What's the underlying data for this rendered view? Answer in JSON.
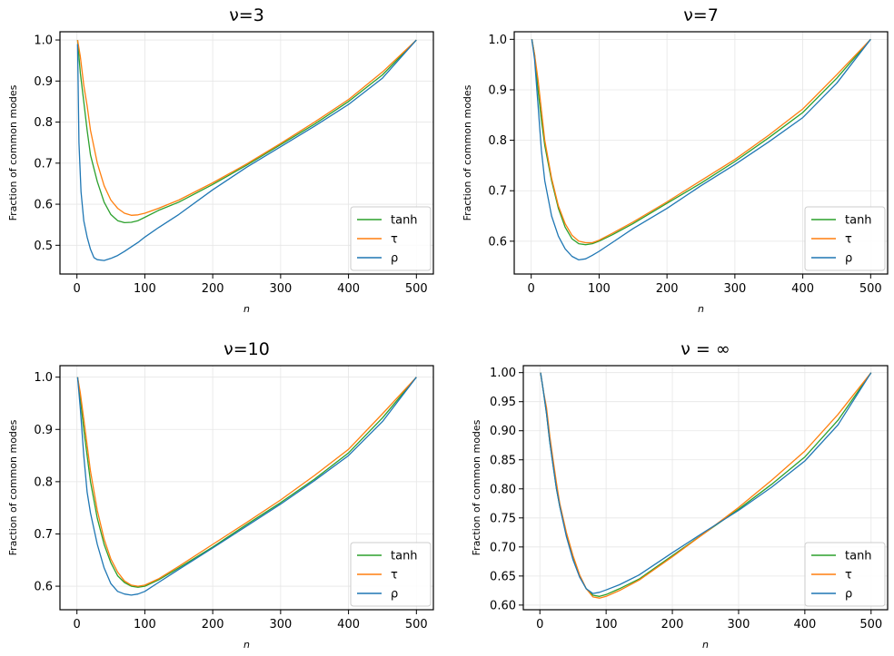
{
  "figure": {
    "colors": {
      "tanh": "#2ca02c",
      "tau": "#ff7f0e",
      "rho": "#1f77b4"
    }
  },
  "chart_data": [
    {
      "type": "line",
      "title": "ν=3",
      "xlabel": "n",
      "ylabel": "Fraction of common modes",
      "xlim": [
        -25,
        525
      ],
      "ylim": [
        0.43,
        1.02
      ],
      "xticks": [
        0,
        100,
        200,
        300,
        400,
        500
      ],
      "yticks": [
        0.5,
        0.6,
        0.7,
        0.8,
        0.9,
        1.0
      ],
      "ytick_labels": [
        "0.5",
        "0.6",
        "0.7",
        "0.8",
        "0.9",
        "1.0"
      ],
      "grid": true,
      "legend_position": "lower-right",
      "series": [
        {
          "name": "tanh",
          "color": "#2ca02c",
          "x": [
            1,
            5,
            10,
            15,
            20,
            30,
            40,
            50,
            60,
            70,
            80,
            90,
            100,
            120,
            150,
            200,
            250,
            300,
            350,
            400,
            450,
            500
          ],
          "y": [
            1.0,
            0.92,
            0.85,
            0.78,
            0.72,
            0.655,
            0.605,
            0.575,
            0.56,
            0.555,
            0.556,
            0.56,
            0.568,
            0.585,
            0.605,
            0.648,
            0.695,
            0.745,
            0.795,
            0.85,
            0.915,
            1.0
          ]
        },
        {
          "name": "τ",
          "color": "#ff7f0e",
          "x": [
            1,
            5,
            10,
            15,
            20,
            30,
            40,
            50,
            60,
            70,
            80,
            90,
            100,
            120,
            150,
            200,
            250,
            300,
            350,
            400,
            450,
            500
          ],
          "y": [
            1.0,
            0.96,
            0.89,
            0.84,
            0.78,
            0.7,
            0.645,
            0.61,
            0.59,
            0.578,
            0.573,
            0.574,
            0.578,
            0.59,
            0.61,
            0.652,
            0.698,
            0.748,
            0.8,
            0.855,
            0.922,
            1.0
          ]
        },
        {
          "name": "ρ",
          "color": "#1f77b4",
          "x": [
            1,
            3,
            6,
            10,
            15,
            20,
            25,
            30,
            40,
            50,
            60,
            70,
            80,
            90,
            100,
            120,
            150,
            200,
            250,
            300,
            350,
            400,
            450,
            500
          ],
          "y": [
            0.99,
            0.75,
            0.63,
            0.56,
            0.52,
            0.49,
            0.47,
            0.465,
            0.463,
            0.468,
            0.475,
            0.485,
            0.496,
            0.507,
            0.52,
            0.543,
            0.575,
            0.635,
            0.69,
            0.74,
            0.79,
            0.843,
            0.907,
            1.0
          ]
        }
      ]
    },
    {
      "type": "line",
      "title": "ν=7",
      "xlabel": "n",
      "ylabel": "Fraction of common modes",
      "xlim": [
        -25,
        525
      ],
      "ylim": [
        0.535,
        1.015
      ],
      "xticks": [
        0,
        100,
        200,
        300,
        400,
        500
      ],
      "yticks": [
        0.6,
        0.7,
        0.8,
        0.9,
        1.0
      ],
      "ytick_labels": [
        "0.6",
        "0.7",
        "0.8",
        "0.9",
        "1.0"
      ],
      "grid": true,
      "legend_position": "lower-right",
      "series": [
        {
          "name": "tanh",
          "color": "#2ca02c",
          "x": [
            1,
            5,
            10,
            15,
            20,
            30,
            40,
            50,
            60,
            70,
            80,
            90,
            100,
            120,
            150,
            200,
            250,
            300,
            350,
            400,
            450,
            500
          ],
          "y": [
            1.0,
            0.97,
            0.9,
            0.84,
            0.79,
            0.72,
            0.665,
            0.628,
            0.605,
            0.595,
            0.593,
            0.595,
            0.6,
            0.613,
            0.635,
            0.675,
            0.715,
            0.758,
            0.805,
            0.855,
            0.923,
            1.0
          ]
        },
        {
          "name": "τ",
          "color": "#ff7f0e",
          "x": [
            1,
            5,
            10,
            15,
            20,
            30,
            40,
            50,
            60,
            70,
            80,
            90,
            100,
            120,
            150,
            200,
            250,
            300,
            350,
            400,
            450,
            500
          ],
          "y": [
            1.0,
            0.97,
            0.92,
            0.86,
            0.8,
            0.725,
            0.67,
            0.635,
            0.612,
            0.6,
            0.597,
            0.597,
            0.602,
            0.616,
            0.638,
            0.678,
            0.72,
            0.762,
            0.81,
            0.862,
            0.93,
            1.0
          ]
        },
        {
          "name": "ρ",
          "color": "#1f77b4",
          "x": [
            1,
            5,
            10,
            15,
            20,
            30,
            40,
            50,
            60,
            70,
            80,
            90,
            100,
            120,
            150,
            200,
            250,
            300,
            350,
            400,
            450,
            500
          ],
          "y": [
            1.0,
            0.96,
            0.87,
            0.78,
            0.72,
            0.65,
            0.61,
            0.585,
            0.57,
            0.563,
            0.565,
            0.572,
            0.58,
            0.598,
            0.625,
            0.665,
            0.71,
            0.752,
            0.797,
            0.845,
            0.913,
            1.0
          ]
        }
      ]
    },
    {
      "type": "line",
      "title": "ν=10",
      "xlabel": "n",
      "ylabel": "Fraction of common modes",
      "xlim": [
        -25,
        525
      ],
      "ylim": [
        0.555,
        1.022
      ],
      "xticks": [
        0,
        100,
        200,
        300,
        400,
        500
      ],
      "yticks": [
        0.6,
        0.7,
        0.8,
        0.9,
        1.0
      ],
      "ytick_labels": [
        "0.6",
        "0.7",
        "0.8",
        "0.9",
        "1.0"
      ],
      "grid": true,
      "legend_position": "lower-right",
      "series": [
        {
          "name": "tanh",
          "color": "#2ca02c",
          "x": [
            1,
            5,
            10,
            15,
            20,
            30,
            40,
            50,
            60,
            70,
            80,
            90,
            100,
            120,
            150,
            200,
            250,
            300,
            350,
            400,
            450,
            500
          ],
          "y": [
            1.0,
            0.96,
            0.9,
            0.85,
            0.8,
            0.73,
            0.68,
            0.645,
            0.62,
            0.607,
            0.6,
            0.598,
            0.6,
            0.612,
            0.635,
            0.675,
            0.718,
            0.76,
            0.805,
            0.855,
            0.922,
            1.0
          ]
        },
        {
          "name": "τ",
          "color": "#ff7f0e",
          "x": [
            1,
            5,
            10,
            15,
            20,
            30,
            40,
            50,
            60,
            70,
            80,
            90,
            100,
            120,
            150,
            200,
            250,
            300,
            350,
            400,
            450,
            500
          ],
          "y": [
            1.0,
            0.97,
            0.92,
            0.87,
            0.82,
            0.745,
            0.69,
            0.652,
            0.627,
            0.61,
            0.602,
            0.6,
            0.602,
            0.614,
            0.638,
            0.68,
            0.722,
            0.765,
            0.812,
            0.862,
            0.93,
            1.0
          ]
        },
        {
          "name": "ρ",
          "color": "#1f77b4",
          "x": [
            1,
            5,
            10,
            15,
            20,
            30,
            40,
            50,
            60,
            70,
            80,
            90,
            100,
            120,
            150,
            200,
            250,
            300,
            350,
            400,
            450,
            500
          ],
          "y": [
            1.0,
            0.94,
            0.85,
            0.78,
            0.74,
            0.68,
            0.635,
            0.605,
            0.59,
            0.585,
            0.583,
            0.585,
            0.59,
            0.607,
            0.632,
            0.673,
            0.715,
            0.757,
            0.802,
            0.85,
            0.915,
            1.0
          ]
        }
      ]
    },
    {
      "type": "line",
      "title": "ν = ∞",
      "xlabel": "n",
      "ylabel": "Fraction of common modes",
      "xlim": [
        -25,
        525
      ],
      "ylim": [
        0.592,
        1.012
      ],
      "xticks": [
        0,
        100,
        200,
        300,
        400,
        500
      ],
      "yticks": [
        0.6,
        0.65,
        0.7,
        0.75,
        0.8,
        0.85,
        0.9,
        0.95,
        1.0
      ],
      "ytick_labels": [
        "0.60",
        "0.65",
        "0.70",
        "0.75",
        "0.80",
        "0.85",
        "0.90",
        "0.95",
        "1.00"
      ],
      "grid": true,
      "legend_position": "lower-right",
      "series": [
        {
          "name": "tanh",
          "color": "#2ca02c",
          "x": [
            1,
            5,
            10,
            15,
            20,
            25,
            30,
            40,
            50,
            60,
            70,
            80,
            90,
            100,
            120,
            150,
            200,
            250,
            300,
            350,
            400,
            450,
            500
          ],
          "y": [
            1.0,
            0.97,
            0.93,
            0.88,
            0.84,
            0.8,
            0.77,
            0.72,
            0.68,
            0.65,
            0.628,
            0.617,
            0.615,
            0.618,
            0.628,
            0.645,
            0.685,
            0.725,
            0.765,
            0.808,
            0.855,
            0.918,
            1.0
          ]
        },
        {
          "name": "τ",
          "color": "#ff7f0e",
          "x": [
            1,
            5,
            10,
            15,
            20,
            25,
            30,
            40,
            50,
            60,
            70,
            80,
            90,
            100,
            120,
            150,
            200,
            250,
            300,
            350,
            400,
            450,
            500
          ],
          "y": [
            1.0,
            0.97,
            0.94,
            0.89,
            0.85,
            0.81,
            0.775,
            0.725,
            0.685,
            0.652,
            0.628,
            0.614,
            0.612,
            0.615,
            0.625,
            0.643,
            0.683,
            0.725,
            0.768,
            0.815,
            0.865,
            0.928,
            1.0
          ]
        },
        {
          "name": "ρ",
          "color": "#1f77b4",
          "x": [
            1,
            5,
            10,
            15,
            20,
            25,
            30,
            40,
            50,
            60,
            70,
            80,
            90,
            100,
            120,
            150,
            200,
            250,
            300,
            350,
            400,
            450,
            500
          ],
          "y": [
            1.0,
            0.97,
            0.93,
            0.88,
            0.84,
            0.8,
            0.77,
            0.718,
            0.678,
            0.648,
            0.628,
            0.62,
            0.622,
            0.626,
            0.635,
            0.652,
            0.69,
            0.727,
            0.763,
            0.803,
            0.848,
            0.91,
            1.0
          ]
        }
      ]
    }
  ]
}
